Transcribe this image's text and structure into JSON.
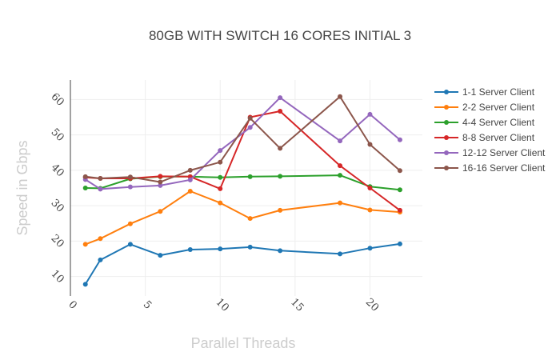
{
  "chart_data": {
    "type": "line",
    "title": "80GB WITH SWITCH 16 CORES INITIAL 3",
    "xlabel": "Parallel Threads",
    "ylabel": "Speed in Gbps",
    "xlim": [
      0,
      23.5
    ],
    "ylim": [
      4.5,
      65.5
    ],
    "x_ticks": [
      "0",
      "5",
      "10",
      "15",
      "20"
    ],
    "x_tick_values": [
      0,
      5,
      10,
      15,
      20
    ],
    "y_ticks": [
      "10",
      "20",
      "30",
      "40",
      "50",
      "60"
    ],
    "y_tick_values": [
      10,
      20,
      30,
      40,
      50,
      60
    ],
    "grid": true,
    "legend_position": "right",
    "series": [
      {
        "name": "1-1 Server Client",
        "color": "#1f77b4",
        "x": [
          1,
          2,
          4,
          6,
          8,
          10,
          12,
          14,
          18,
          20,
          22
        ],
        "y": [
          7.8,
          14.7,
          19.1,
          16.0,
          17.6,
          17.8,
          18.3,
          17.3,
          16.4,
          18.0,
          19.2
        ]
      },
      {
        "name": "2-2 Server Client",
        "color": "#ff7f0e",
        "x": [
          1,
          2,
          4,
          6,
          8,
          10,
          12,
          14,
          18,
          20,
          22
        ],
        "y": [
          19.1,
          20.7,
          24.9,
          28.4,
          34.1,
          30.8,
          26.4,
          28.7,
          30.8,
          28.8,
          28.2
        ]
      },
      {
        "name": "4-4 Server Client",
        "color": "#2ca02c",
        "x": [
          1,
          2,
          4,
          6,
          8,
          10,
          12,
          14,
          18,
          20,
          22
        ],
        "y": [
          35.0,
          34.9,
          37.6,
          38.2,
          38.2,
          38.0,
          38.2,
          38.3,
          38.6,
          35.4,
          34.5
        ]
      },
      {
        "name": "8-8 Server Client",
        "color": "#d62728",
        "x": [
          1,
          2,
          4,
          6,
          8,
          10,
          12,
          14,
          18,
          20,
          22
        ],
        "y": [
          38.0,
          37.7,
          37.7,
          38.3,
          38.2,
          34.8,
          55.0,
          56.7,
          41.3,
          35.0,
          28.7
        ]
      },
      {
        "name": "12-12 Server Client",
        "color": "#9467bd",
        "x": [
          1,
          2,
          4,
          6,
          8,
          10,
          12,
          14,
          18,
          20,
          22
        ],
        "y": [
          37.4,
          34.7,
          35.3,
          35.7,
          37.3,
          45.6,
          52.1,
          60.5,
          48.3,
          55.8,
          48.6
        ]
      },
      {
        "name": "16-16 Server Client",
        "color": "#8c564b",
        "x": [
          1,
          2,
          4,
          6,
          8,
          10,
          12,
          14,
          18,
          20,
          22
        ],
        "y": [
          38.2,
          37.7,
          38.1,
          36.7,
          40.0,
          42.3,
          54.7,
          46.2,
          60.8,
          47.3,
          39.9
        ]
      }
    ]
  }
}
